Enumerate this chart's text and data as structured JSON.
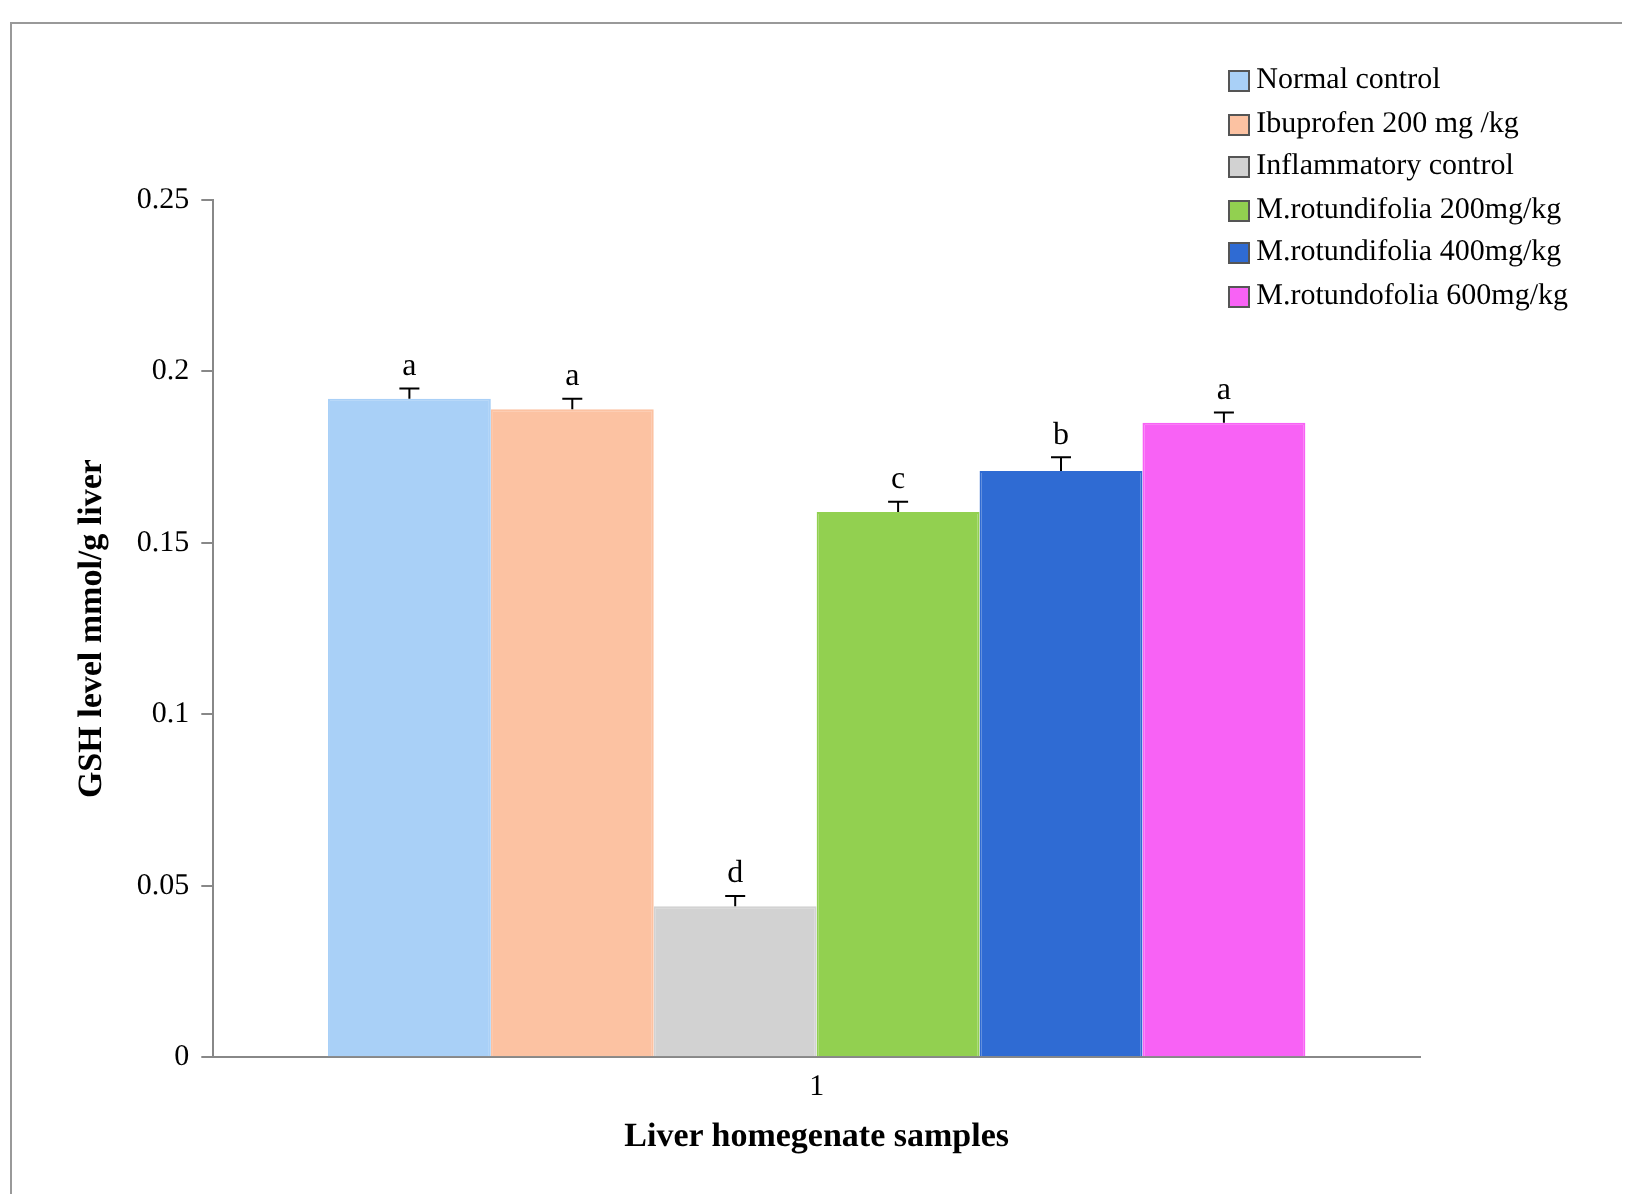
{
  "chart_data": {
    "type": "bar",
    "xlabel": "Liver homegenate samples",
    "ylabel": "GSH level mmol/g liver",
    "categories": [
      "1"
    ],
    "series": [
      {
        "name": "Normal control",
        "color": "#a9d0f7",
        "values": [
          0.192
        ],
        "errors": [
          [
            0.192,
            0.195
          ]
        ],
        "value_labels": [
          "a"
        ]
      },
      {
        "name": "Ibuprofen 200 mg /kg",
        "color": "#fcc2a2",
        "values": [
          0.189
        ],
        "errors": [
          [
            0.189,
            0.192
          ]
        ],
        "value_labels": [
          "a"
        ]
      },
      {
        "name": "Inflammatory control",
        "color": "#d2d2d2",
        "values": [
          0.044
        ],
        "errors": [
          [
            0.044,
            0.047
          ]
        ],
        "value_labels": [
          "d"
        ]
      },
      {
        "name": "M.rotundifolia 200mg/kg",
        "color": "#92d050",
        "values": [
          0.159
        ],
        "errors": [
          [
            0.159,
            0.162
          ]
        ],
        "value_labels": [
          "c"
        ]
      },
      {
        "name": "M.rotundifolia 400mg/kg",
        "color": "#2f6bd3",
        "values": [
          0.171
        ],
        "errors": [
          [
            0.171,
            0.175
          ]
        ],
        "value_labels": [
          "b"
        ]
      },
      {
        "name": "M.rotundofolia 600mg/kg",
        "color": "#f862f5",
        "values": [
          0.185
        ],
        "errors": [
          [
            0.185,
            0.188
          ]
        ],
        "value_labels": [
          "a"
        ]
      }
    ],
    "ylim": [
      0,
      0.25
    ],
    "yticks": [
      0,
      0.05,
      0.1,
      0.15,
      0.2,
      0.25
    ],
    "grid": false,
    "legend": "top right"
  }
}
